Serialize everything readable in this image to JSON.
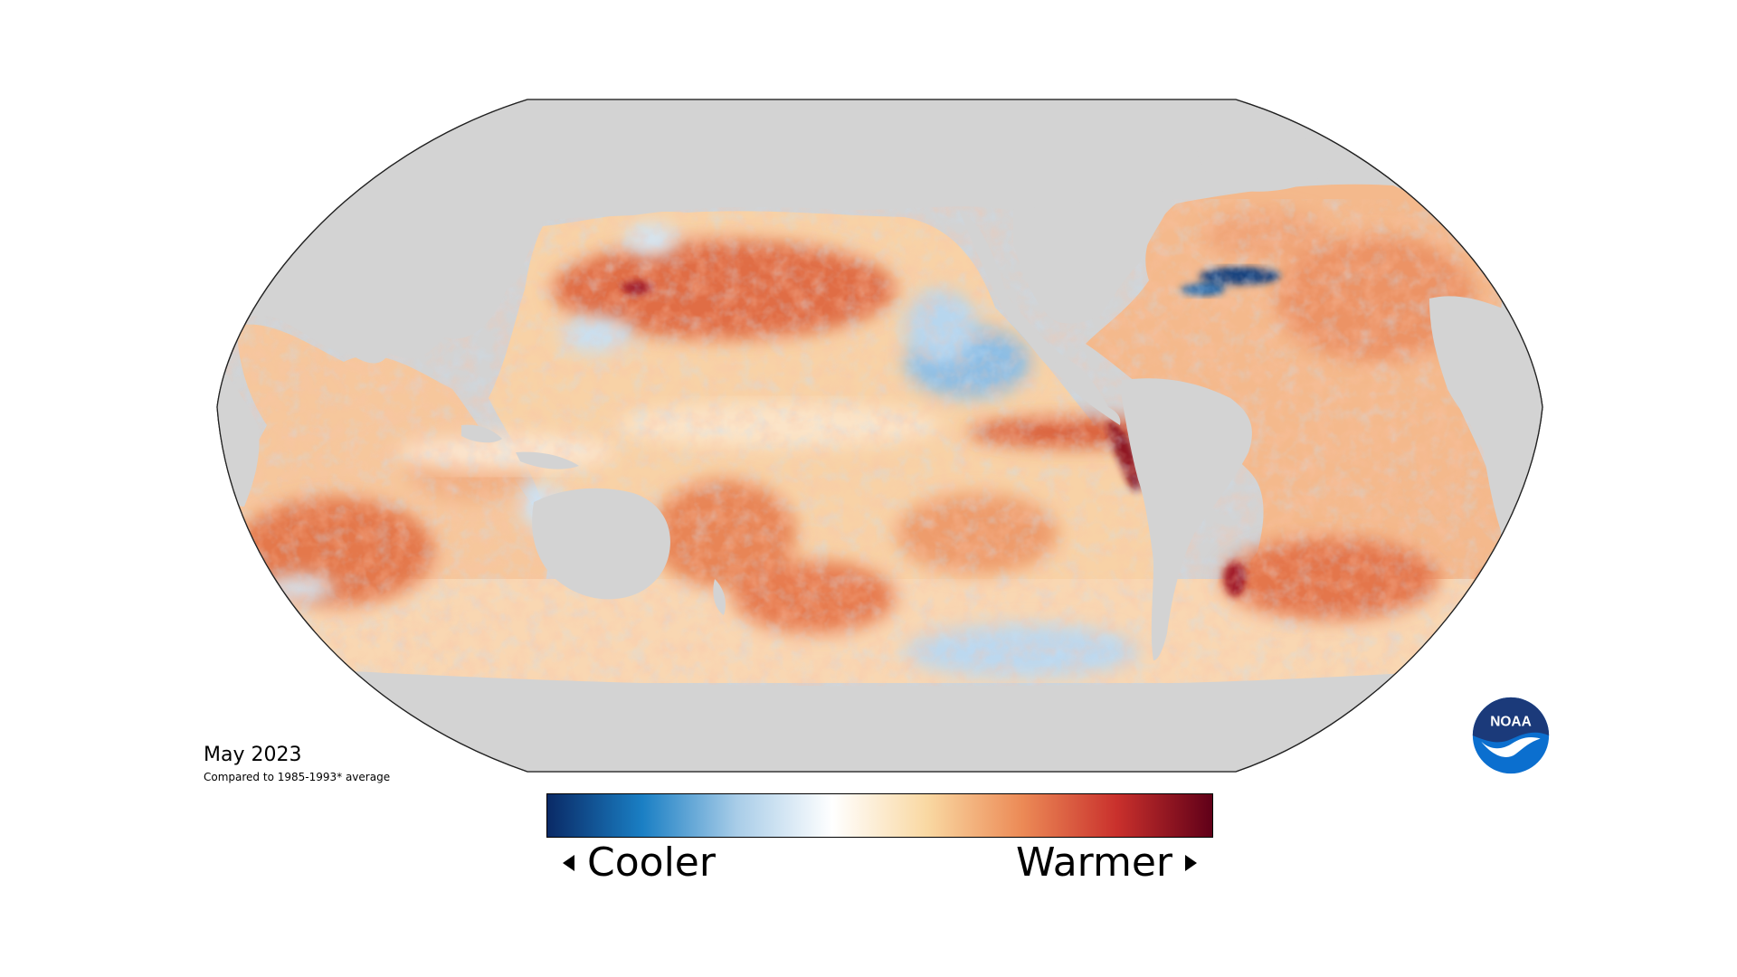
{
  "map": {
    "projection": "Robinson (Pacific-centered)",
    "variable": "sea surface temperature anomaly",
    "land_color": "#d3d3d3",
    "ocean_neutral_color": "#fbf6ea",
    "border_color": "#222222"
  },
  "caption": {
    "title": "May 2023",
    "subtitle": "Compared to 1985-1993* average"
  },
  "legend": {
    "low_label": "Cooler",
    "high_label": "Warmer",
    "colors": [
      "#0a2a66",
      "#1a7fc4",
      "#a9cde8",
      "#ffffff",
      "#f9d8a2",
      "#ec8a56",
      "#c9302c",
      "#600018"
    ]
  },
  "logo": {
    "text": "NOAA",
    "colors": {
      "outer": "#0b6fcf",
      "top": "#1b3a7a",
      "bird": "#ffffff"
    }
  }
}
